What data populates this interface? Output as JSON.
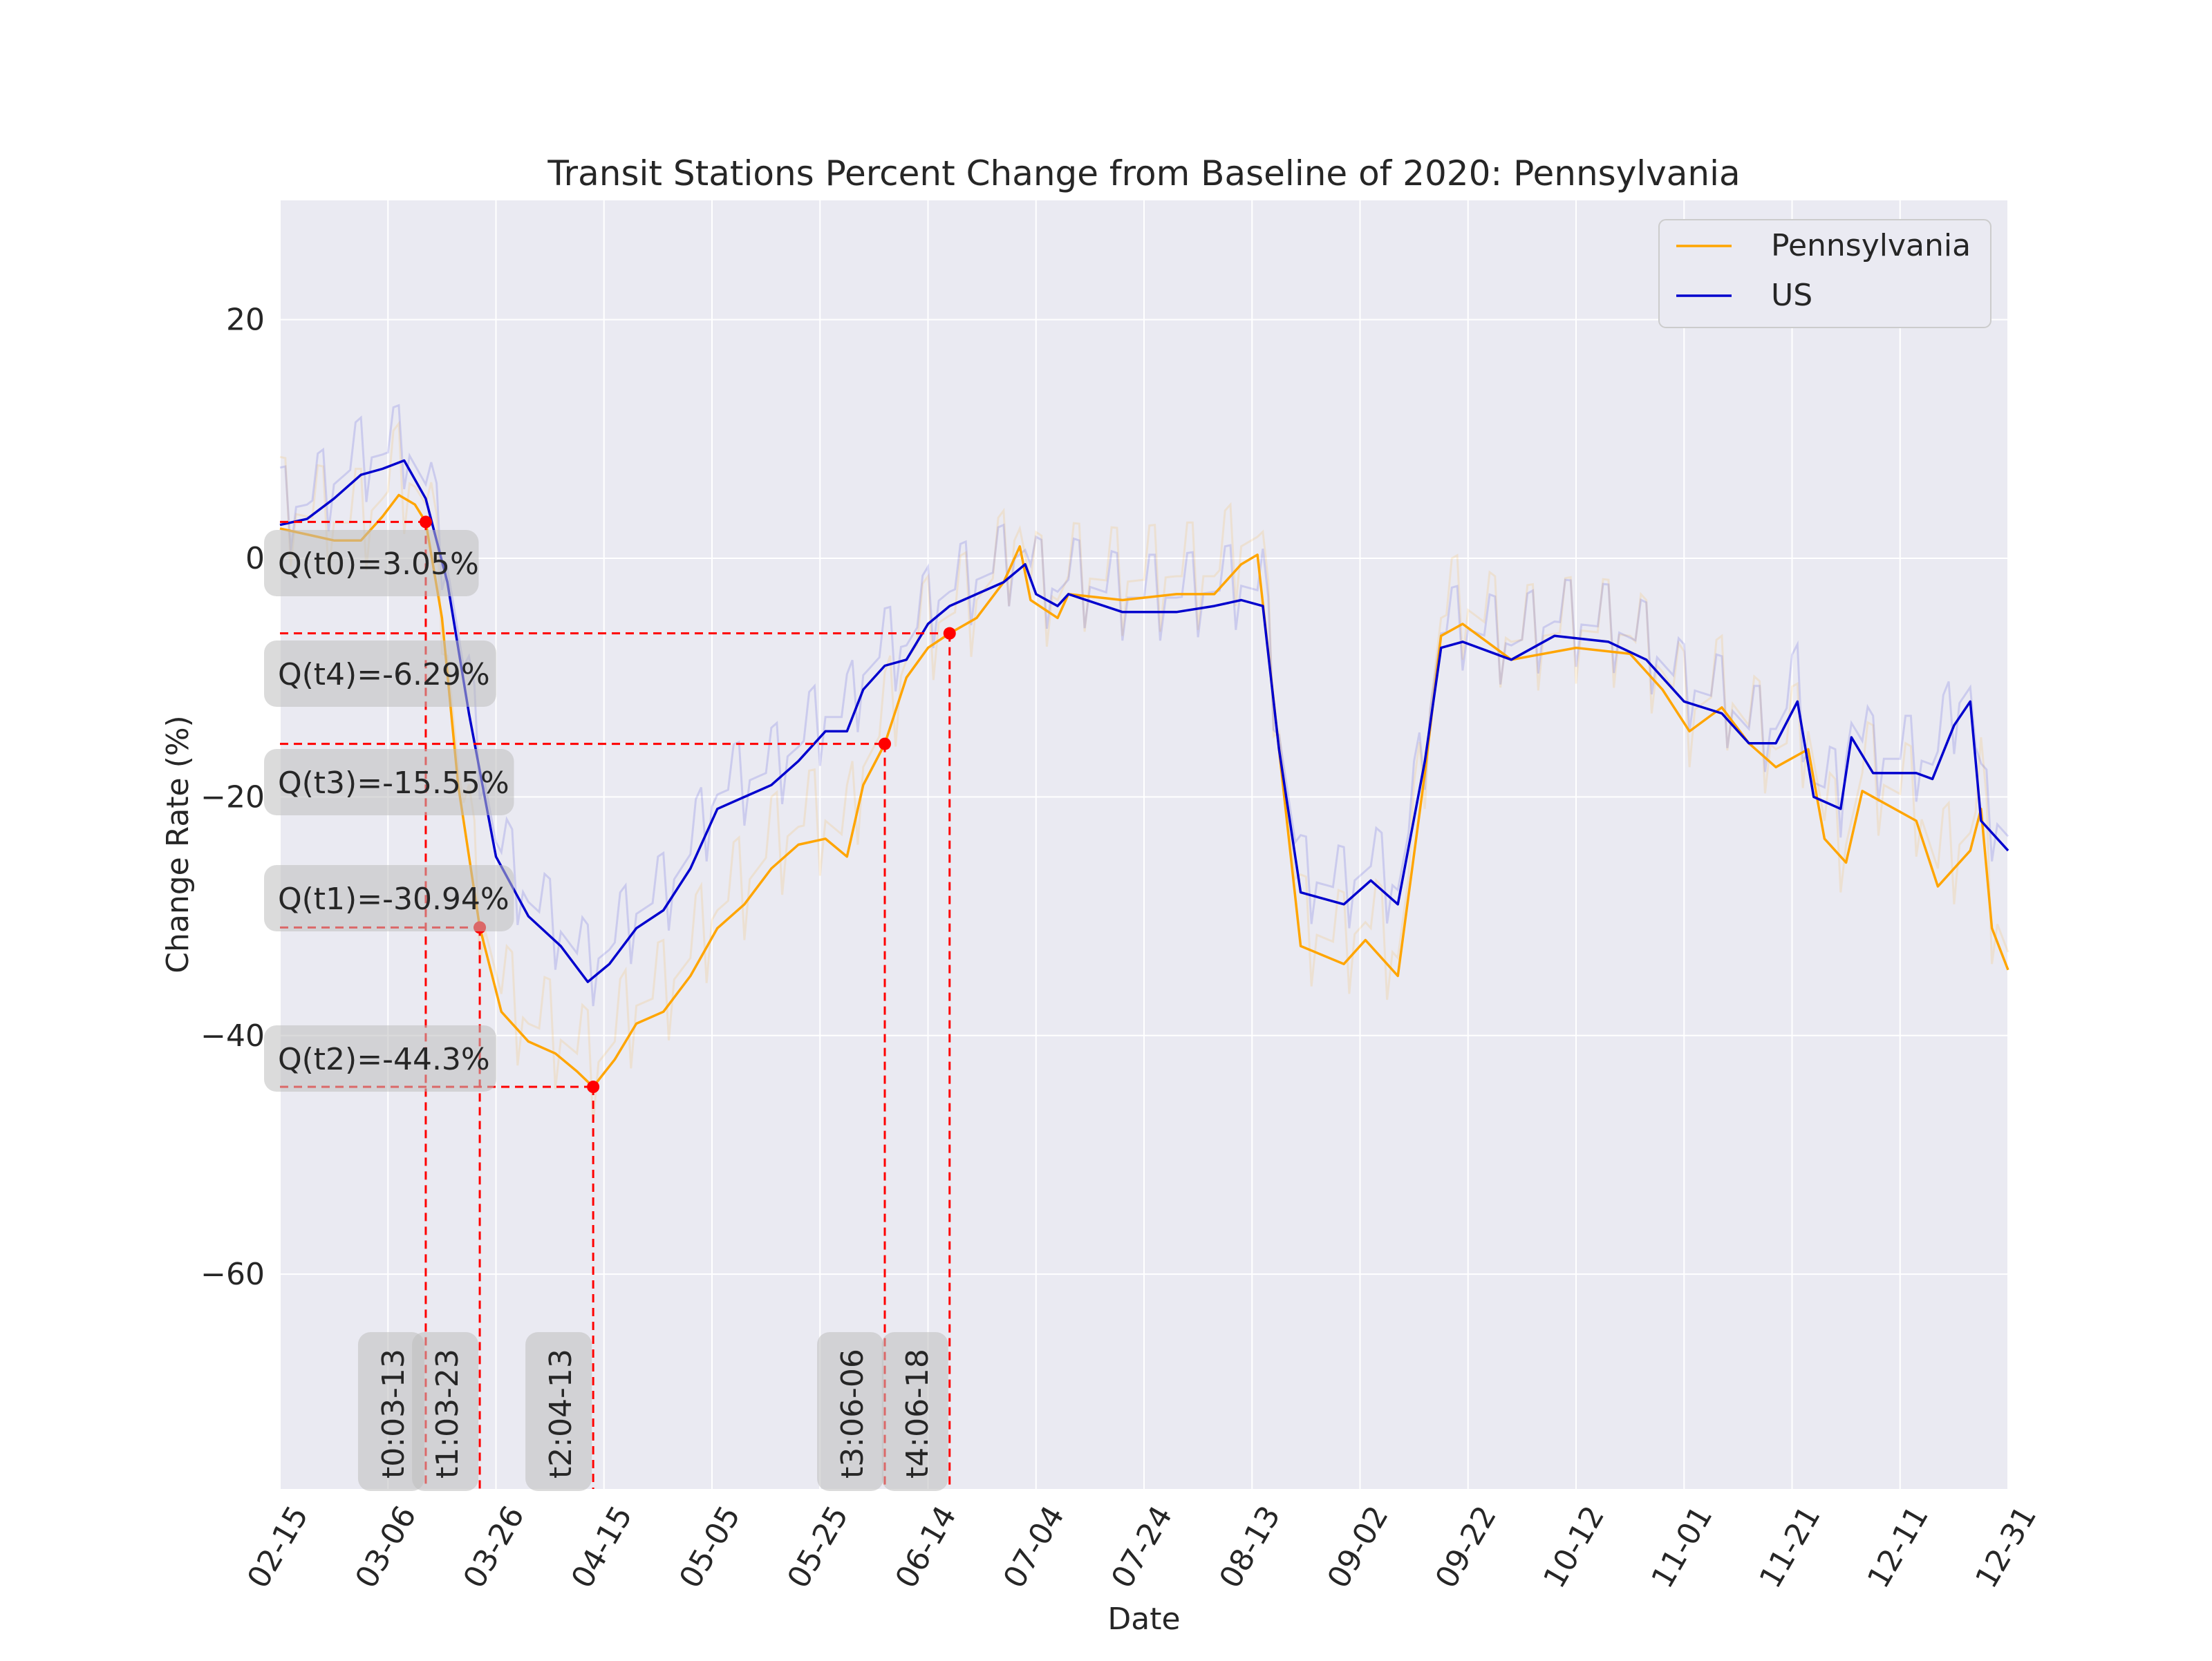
{
  "chart_data": {
    "type": "line",
    "title": "Transit Stations Percent Change from Baseline of 2020: Pennsylvania",
    "xlabel": "Date",
    "ylabel": "Change Rate (%)",
    "x_tick_labels": [
      "02-15",
      "03-06",
      "03-26",
      "04-15",
      "05-05",
      "05-25",
      "06-14",
      "07-04",
      "07-24",
      "08-13",
      "09-02",
      "09-22",
      "10-12",
      "11-01",
      "11-21",
      "12-11",
      "12-31"
    ],
    "y_ticks": [
      20,
      0,
      -20,
      -40,
      -60
    ],
    "y_tick_labels": [
      "20",
      "0",
      "−20",
      "−40",
      "−60"
    ],
    "ylim": [
      -78,
      30
    ],
    "xlim": [
      "2020-02-15",
      "2020-12-31"
    ],
    "grid": true,
    "legend_position": "upper right",
    "colors": {
      "Pennsylvania": "#ffa500",
      "US": "#0000cd",
      "annotation": "#ff0000",
      "background": "#eaeaf2"
    },
    "series": [
      {
        "name": "Pennsylvania",
        "points": [
          [
            "2020-02-15",
            2.5
          ],
          [
            "2020-02-20",
            2.0
          ],
          [
            "2020-02-25",
            1.5
          ],
          [
            "2020-03-01",
            1.5
          ],
          [
            "2020-03-05",
            3.5
          ],
          [
            "2020-03-08",
            5.3
          ],
          [
            "2020-03-11",
            4.5
          ],
          [
            "2020-03-13",
            3.05
          ],
          [
            "2020-03-16",
            -5
          ],
          [
            "2020-03-19",
            -19
          ],
          [
            "2020-03-23",
            -30.94
          ],
          [
            "2020-03-27",
            -38
          ],
          [
            "2020-04-01",
            -40.5
          ],
          [
            "2020-04-06",
            -41.5
          ],
          [
            "2020-04-10",
            -43
          ],
          [
            "2020-04-13",
            -44.3
          ],
          [
            "2020-04-17",
            -42
          ],
          [
            "2020-04-21",
            -39
          ],
          [
            "2020-04-26",
            -38
          ],
          [
            "2020-05-01",
            -35
          ],
          [
            "2020-05-06",
            -31
          ],
          [
            "2020-05-11",
            -29
          ],
          [
            "2020-05-16",
            -26
          ],
          [
            "2020-05-21",
            -24
          ],
          [
            "2020-05-26",
            -23.5
          ],
          [
            "2020-05-30",
            -25
          ],
          [
            "2020-06-02",
            -19
          ],
          [
            "2020-06-06",
            -15.55
          ],
          [
            "2020-06-10",
            -10
          ],
          [
            "2020-06-14",
            -7.5
          ],
          [
            "2020-06-18",
            -6.29
          ],
          [
            "2020-06-23",
            -5
          ],
          [
            "2020-06-28",
            -2
          ],
          [
            "2020-07-01",
            1
          ],
          [
            "2020-07-03",
            -3.5
          ],
          [
            "2020-07-08",
            -5
          ],
          [
            "2020-07-10",
            -3
          ],
          [
            "2020-07-20",
            -3.5
          ],
          [
            "2020-07-30",
            -3
          ],
          [
            "2020-08-06",
            -3
          ],
          [
            "2020-08-11",
            -0.5
          ],
          [
            "2020-08-14",
            0.3
          ],
          [
            "2020-08-18",
            -16
          ],
          [
            "2020-08-22",
            -32.5
          ],
          [
            "2020-08-30",
            -34
          ],
          [
            "2020-09-03",
            -32
          ],
          [
            "2020-09-07",
            -34
          ],
          [
            "2020-09-09",
            -35
          ],
          [
            "2020-09-14",
            -18
          ],
          [
            "2020-09-17",
            -6.5
          ],
          [
            "2020-09-21",
            -5.5
          ],
          [
            "2020-09-30",
            -8.5
          ],
          [
            "2020-10-12",
            -7.5
          ],
          [
            "2020-10-22",
            -8
          ],
          [
            "2020-10-28",
            -11
          ],
          [
            "2020-11-02",
            -14.5
          ],
          [
            "2020-11-08",
            -12.5
          ],
          [
            "2020-11-13",
            -15.5
          ],
          [
            "2020-11-18",
            -17.5
          ],
          [
            "2020-11-24",
            -16
          ],
          [
            "2020-11-27",
            -23.5
          ],
          [
            "2020-12-01",
            -25.5
          ],
          [
            "2020-12-04",
            -19.5
          ],
          [
            "2020-12-14",
            -22
          ],
          [
            "2020-12-18",
            -27.5
          ],
          [
            "2020-12-24",
            -24.5
          ],
          [
            "2020-12-26",
            -21
          ],
          [
            "2020-12-28",
            -31
          ],
          [
            "2020-12-31",
            -34.5
          ]
        ]
      },
      {
        "name": "US",
        "points": [
          [
            "2020-02-15",
            2.8
          ],
          [
            "2020-02-20",
            3.3
          ],
          [
            "2020-02-25",
            5
          ],
          [
            "2020-03-01",
            7
          ],
          [
            "2020-03-05",
            7.5
          ],
          [
            "2020-03-09",
            8.2
          ],
          [
            "2020-03-13",
            5
          ],
          [
            "2020-03-17",
            -2
          ],
          [
            "2020-03-21",
            -13
          ],
          [
            "2020-03-26",
            -25
          ],
          [
            "2020-04-01",
            -30
          ],
          [
            "2020-04-07",
            -32.5
          ],
          [
            "2020-04-12",
            -35.5
          ],
          [
            "2020-04-16",
            -34
          ],
          [
            "2020-04-21",
            -31
          ],
          [
            "2020-04-26",
            -29.5
          ],
          [
            "2020-05-01",
            -26
          ],
          [
            "2020-05-06",
            -21
          ],
          [
            "2020-05-11",
            -20
          ],
          [
            "2020-05-16",
            -19
          ],
          [
            "2020-05-21",
            -17
          ],
          [
            "2020-05-26",
            -14.5
          ],
          [
            "2020-05-30",
            -14.5
          ],
          [
            "2020-06-02",
            -11
          ],
          [
            "2020-06-06",
            -9
          ],
          [
            "2020-06-10",
            -8.5
          ],
          [
            "2020-06-14",
            -5.5
          ],
          [
            "2020-06-18",
            -4
          ],
          [
            "2020-06-23",
            -3
          ],
          [
            "2020-06-28",
            -2
          ],
          [
            "2020-07-02",
            -0.5
          ],
          [
            "2020-07-04",
            -3
          ],
          [
            "2020-07-08",
            -4
          ],
          [
            "2020-07-10",
            -3
          ],
          [
            "2020-07-20",
            -4.5
          ],
          [
            "2020-07-30",
            -4.5
          ],
          [
            "2020-08-06",
            -4
          ],
          [
            "2020-08-11",
            -3.5
          ],
          [
            "2020-08-15",
            -4
          ],
          [
            "2020-08-18",
            -16
          ],
          [
            "2020-08-22",
            -28
          ],
          [
            "2020-08-30",
            -29
          ],
          [
            "2020-09-04",
            -27
          ],
          [
            "2020-09-09",
            -29
          ],
          [
            "2020-09-14",
            -17
          ],
          [
            "2020-09-17",
            -7.5
          ],
          [
            "2020-09-21",
            -7
          ],
          [
            "2020-09-30",
            -8.5
          ],
          [
            "2020-10-08",
            -6.5
          ],
          [
            "2020-10-18",
            -7
          ],
          [
            "2020-10-25",
            -8.5
          ],
          [
            "2020-11-01",
            -12
          ],
          [
            "2020-11-08",
            -13
          ],
          [
            "2020-11-13",
            -15.5
          ],
          [
            "2020-11-18",
            -15.5
          ],
          [
            "2020-11-22",
            -12
          ],
          [
            "2020-11-25",
            -20
          ],
          [
            "2020-11-30",
            -21
          ],
          [
            "2020-12-02",
            -15
          ],
          [
            "2020-12-06",
            -18
          ],
          [
            "2020-12-14",
            -18
          ],
          [
            "2020-12-17",
            -18.5
          ],
          [
            "2020-12-21",
            -14
          ],
          [
            "2020-12-24",
            -12
          ],
          [
            "2020-12-26",
            -22
          ],
          [
            "2020-12-31",
            -24.5
          ]
        ]
      }
    ],
    "annotations": [
      {
        "id": "t0",
        "date": "2020-03-13",
        "value": 3.05,
        "date_label": "t0:03-13",
        "value_label": "Q(t0)=3.05%"
      },
      {
        "id": "t1",
        "date": "2020-03-23",
        "value": -30.94,
        "date_label": "t1:03-23",
        "value_label": "Q(t1)=-30.94%"
      },
      {
        "id": "t2",
        "date": "2020-04-13",
        "value": -44.3,
        "date_label": "t2:04-13",
        "value_label": "Q(t2)=-44.3%"
      },
      {
        "id": "t3",
        "date": "2020-06-06",
        "value": -15.55,
        "date_label": "t3:06-06",
        "value_label": "Q(t3)=-15.55%"
      },
      {
        "id": "t4",
        "date": "2020-06-18",
        "value": -6.29,
        "date_label": "t4:06-18",
        "value_label": "Q(t4)=-6.29%"
      }
    ]
  }
}
